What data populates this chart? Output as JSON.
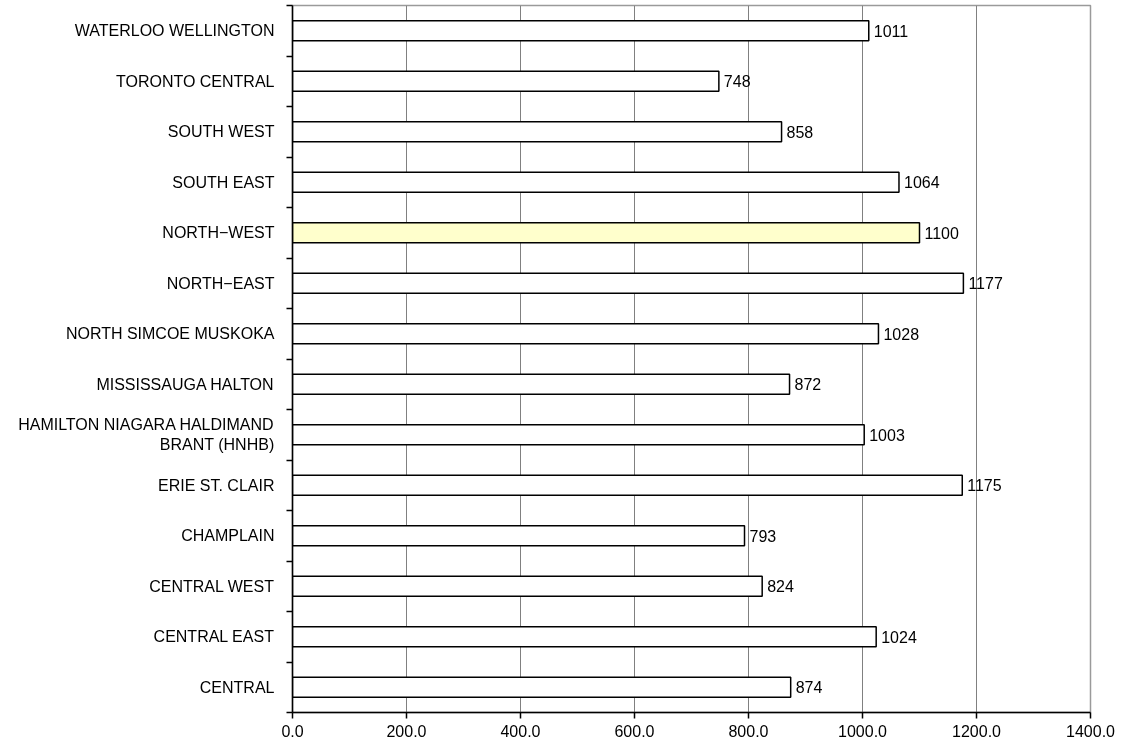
{
  "chart_data": {
    "type": "bar",
    "orientation": "horizontal",
    "categories": [
      "WATERLOO WELLINGTON",
      "TORONTO CENTRAL",
      "SOUTH WEST",
      "SOUTH EAST",
      "NORTH−WEST",
      "NORTH−EAST",
      "NORTH SIMCOE MUSKOKA",
      "MISSISSAUGA HALTON",
      "HAMILTON NIAGARA HALDIMAND BRANT (HNHB)",
      "ERIE ST. CLAIR",
      "CHAMPLAIN",
      "CENTRAL WEST",
      "CENTRAL EAST",
      "CENTRAL"
    ],
    "values": [
      1011,
      748,
      858,
      1064,
      1100,
      1177,
      1028,
      872,
      1003,
      1175,
      793,
      824,
      1024,
      874
    ],
    "colors": [
      "#ffffff",
      "#ffffff",
      "#ffffff",
      "#ffffff",
      "#ffffcc",
      "#ffffff",
      "#ffffff",
      "#ffffff",
      "#ffffff",
      "#ffffff",
      "#ffffff",
      "#ffffff",
      "#ffffff",
      "#ffffff"
    ],
    "xlim": [
      0,
      1400
    ],
    "xticks": [
      {
        "value": 0,
        "label": "0.0"
      },
      {
        "value": 200,
        "label": "200.0"
      },
      {
        "value": 400,
        "label": "400.0"
      },
      {
        "value": 600,
        "label": "600.0"
      },
      {
        "value": 800,
        "label": "800.0"
      },
      {
        "value": 1000,
        "label": "1000.0"
      },
      {
        "value": 1200,
        "label": "1200.0"
      },
      {
        "value": 1400,
        "label": "1400.0"
      }
    ],
    "grid": "x",
    "data_labels": true
  }
}
